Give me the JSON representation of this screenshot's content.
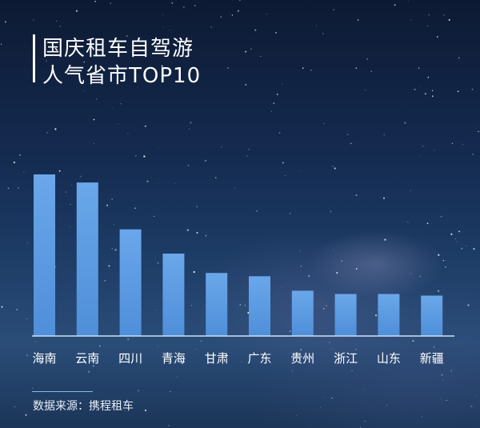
{
  "title_line1": "国庆租车自驾游",
  "title_line2": "人气省市TOP10",
  "source": "数据来源：携程租车",
  "colors": {
    "bar": "#4f8fd9",
    "bar_light": "#6aa7ea",
    "axis": "#cfe0f5",
    "label": "#ffffff"
  },
  "chart_data": {
    "type": "bar",
    "title": "国庆租车自驾游人气省市TOP10",
    "categories": [
      "海南",
      "云南",
      "四川",
      "青海",
      "甘肃",
      "广东",
      "贵州",
      "浙江",
      "山东",
      "新疆"
    ],
    "values": [
      100,
      95,
      66,
      51,
      39,
      37,
      28,
      26,
      26,
      25
    ],
    "ylim": [
      0,
      100
    ],
    "xlabel": "",
    "ylabel": "",
    "grid": false,
    "legend": "none"
  }
}
